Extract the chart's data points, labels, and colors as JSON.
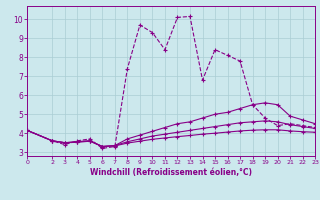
{
  "xlabel": "Windchill (Refroidissement éolien,°C)",
  "xlim": [
    0,
    23
  ],
  "ylim": [
    2.8,
    10.7
  ],
  "yticks": [
    3,
    4,
    5,
    6,
    7,
    8,
    9,
    10
  ],
  "xticks": [
    0,
    2,
    3,
    4,
    5,
    6,
    7,
    8,
    9,
    10,
    11,
    12,
    13,
    14,
    15,
    16,
    17,
    18,
    19,
    20,
    21,
    22,
    23
  ],
  "bg_color": "#cce8ed",
  "line_color": "#880088",
  "grid_color": "#aacdd4",
  "lines": [
    {
      "x": [
        0,
        2,
        3,
        4,
        5,
        6,
        7,
        8,
        9,
        10,
        11,
        12,
        13,
        14,
        15,
        16,
        17,
        18,
        19,
        20,
        21,
        22,
        23
      ],
      "y": [
        4.15,
        3.6,
        3.4,
        3.6,
        3.7,
        3.2,
        3.3,
        7.4,
        9.7,
        9.3,
        8.4,
        10.1,
        10.15,
        6.8,
        8.4,
        8.1,
        7.8,
        5.5,
        4.8,
        4.4,
        4.5,
        4.4,
        4.3
      ]
    },
    {
      "x": [
        0,
        2,
        3,
        4,
        5,
        6,
        7,
        8,
        9,
        10,
        11,
        12,
        13,
        14,
        15,
        16,
        17,
        18,
        19,
        20,
        21,
        22,
        23
      ],
      "y": [
        4.15,
        3.6,
        3.5,
        3.55,
        3.6,
        3.3,
        3.35,
        3.7,
        3.9,
        4.1,
        4.3,
        4.5,
        4.6,
        4.8,
        5.0,
        5.1,
        5.3,
        5.5,
        5.6,
        5.5,
        4.9,
        4.7,
        4.5
      ]
    },
    {
      "x": [
        0,
        2,
        3,
        4,
        5,
        6,
        7,
        8,
        9,
        10,
        11,
        12,
        13,
        14,
        15,
        16,
        17,
        18,
        19,
        20,
        21,
        22,
        23
      ],
      "y": [
        4.15,
        3.6,
        3.5,
        3.55,
        3.6,
        3.3,
        3.35,
        3.55,
        3.7,
        3.85,
        3.95,
        4.05,
        4.15,
        4.25,
        4.35,
        4.45,
        4.55,
        4.6,
        4.65,
        4.6,
        4.45,
        4.35,
        4.25
      ]
    },
    {
      "x": [
        0,
        2,
        3,
        4,
        5,
        6,
        7,
        8,
        9,
        10,
        11,
        12,
        13,
        14,
        15,
        16,
        17,
        18,
        19,
        20,
        21,
        22,
        23
      ],
      "y": [
        4.15,
        3.6,
        3.5,
        3.52,
        3.58,
        3.3,
        3.33,
        3.48,
        3.58,
        3.68,
        3.75,
        3.82,
        3.88,
        3.95,
        4.0,
        4.06,
        4.12,
        4.16,
        4.18,
        4.18,
        4.12,
        4.08,
        4.05
      ]
    }
  ]
}
